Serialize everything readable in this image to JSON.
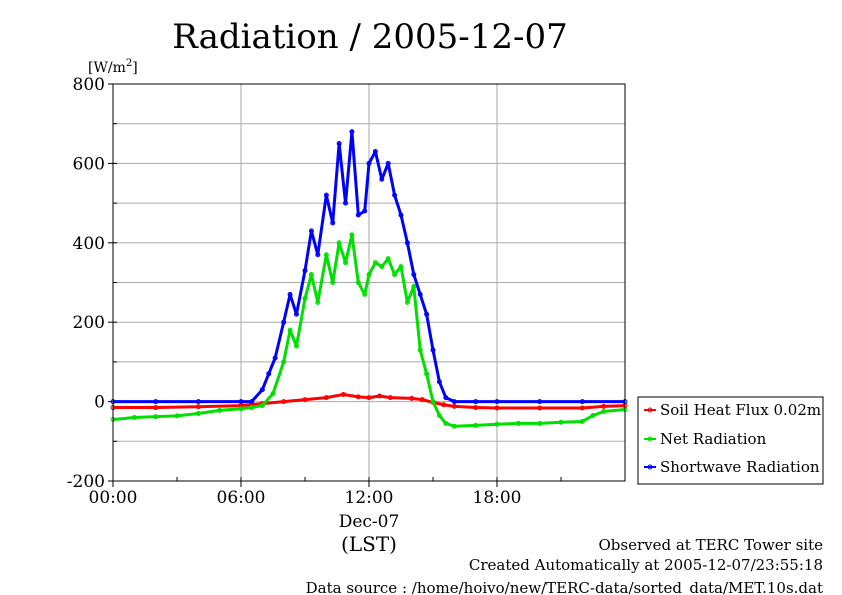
{
  "chart_data": {
    "type": "line",
    "title": "Radiation / 2005-12-07",
    "unit_label": "[W/m²]",
    "unit_base": "[W/m",
    "unit_sup": "2",
    "unit_close": "]",
    "xlabel": "(LST)",
    "x_date_label": "Dec-07",
    "xlim": [
      0,
      24
    ],
    "ylim": [
      -200,
      800
    ],
    "x_ticks": [
      {
        "value": 0,
        "label": "00:00"
      },
      {
        "value": 6,
        "label": "06:00"
      },
      {
        "value": 12,
        "label": "12:00"
      },
      {
        "value": 18,
        "label": "18:00"
      }
    ],
    "y_ticks": [
      {
        "value": 800,
        "label": "800"
      },
      {
        "value": 600,
        "label": "600"
      },
      {
        "value": 400,
        "label": "400"
      },
      {
        "value": 200,
        "label": "200"
      },
      {
        "value": 0,
        "label": "0"
      },
      {
        "value": -200,
        "label": "-200"
      }
    ],
    "grid": true,
    "legend_position": "right-bottom outside",
    "series": [
      {
        "name": "Soil Heat Flux 0.02m",
        "color": "#ff0000",
        "x": [
          0,
          2,
          4,
          6,
          7,
          8,
          9,
          10,
          10.8,
          11.5,
          12,
          12.5,
          13,
          14,
          14.5,
          15,
          15.5,
          16,
          17,
          18,
          20,
          22,
          23,
          24
        ],
        "y": [
          -15,
          -15,
          -13,
          -10,
          -5,
          0,
          5,
          10,
          18,
          12,
          10,
          14,
          10,
          8,
          5,
          -2,
          -8,
          -12,
          -15,
          -16,
          -16,
          -16,
          -12,
          -10
        ]
      },
      {
        "name": "Net Radiation",
        "color": "#00e000",
        "x": [
          0,
          1,
          2,
          3,
          4,
          5,
          6,
          6.5,
          7,
          7.5,
          8,
          8.3,
          8.6,
          9,
          9.3,
          9.6,
          10,
          10.3,
          10.6,
          10.9,
          11.2,
          11.5,
          11.8,
          12,
          12.3,
          12.6,
          12.9,
          13.2,
          13.5,
          13.8,
          14.1,
          14.4,
          14.7,
          15,
          15.3,
          15.6,
          16,
          17,
          18,
          19,
          20,
          21,
          22,
          22.5,
          23,
          24
        ],
        "y": [
          -45,
          -40,
          -38,
          -36,
          -30,
          -22,
          -18,
          -15,
          -10,
          20,
          100,
          180,
          140,
          260,
          320,
          250,
          370,
          300,
          400,
          350,
          420,
          300,
          270,
          320,
          350,
          340,
          360,
          320,
          340,
          250,
          290,
          130,
          70,
          0,
          -35,
          -55,
          -62,
          -60,
          -57,
          -55,
          -55,
          -52,
          -50,
          -35,
          -25,
          -20
        ]
      },
      {
        "name": "Shortwave Radiation",
        "color": "#0000ff",
        "x": [
          0,
          2,
          4,
          6,
          6.5,
          7,
          7.3,
          7.6,
          8,
          8.3,
          8.6,
          9,
          9.3,
          9.6,
          10,
          10.3,
          10.6,
          10.9,
          11.2,
          11.5,
          11.8,
          12,
          12.3,
          12.6,
          12.9,
          13.2,
          13.5,
          13.8,
          14.1,
          14.4,
          14.7,
          15,
          15.3,
          15.6,
          16,
          17,
          18,
          20,
          22,
          24
        ],
        "y": [
          0,
          0,
          0,
          0,
          0,
          30,
          70,
          110,
          200,
          270,
          220,
          330,
          430,
          370,
          520,
          450,
          650,
          500,
          680,
          470,
          480,
          600,
          630,
          560,
          600,
          520,
          470,
          400,
          320,
          270,
          220,
          130,
          50,
          10,
          0,
          0,
          0,
          0,
          0,
          0
        ]
      }
    ]
  },
  "footer": {
    "line1": "Observed at TERC Tower site",
    "line2": "Created Automatically at 2005-12-07/23:55:18",
    "line3": "Data source : /home/hoivo/new/TERC-data/sorted_data/MET.10s.dat"
  }
}
